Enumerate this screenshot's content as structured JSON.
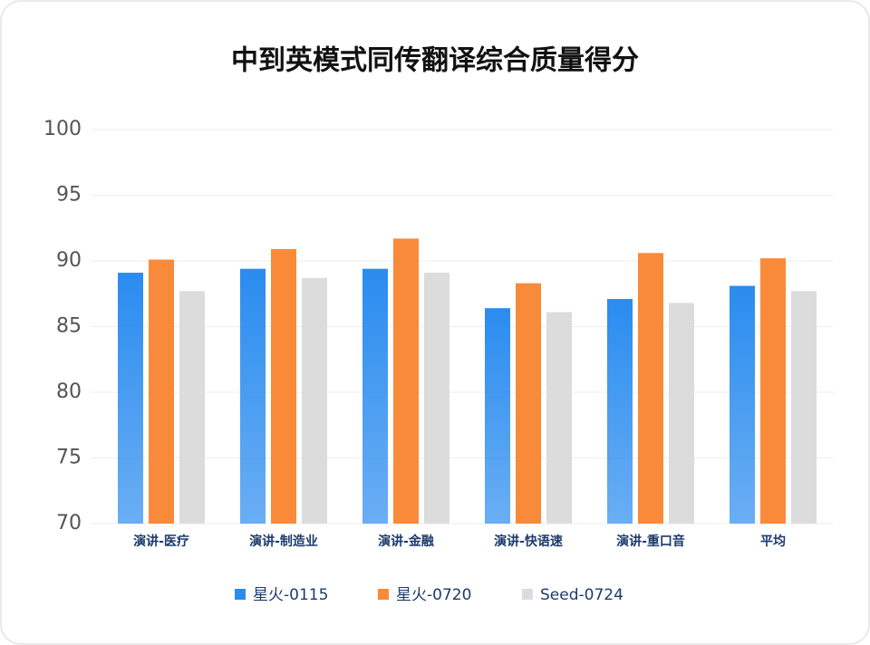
{
  "chart_data": {
    "type": "bar",
    "title": "中到英模式同传翻译综合质量得分",
    "categories": [
      "演讲-医疗",
      "演讲-制造业",
      "演讲-金融",
      "演讲-快语速",
      "演讲-重口音",
      "平均"
    ],
    "series": [
      {
        "name": "星火-0115",
        "color": "#2a8cef",
        "values": [
          89.1,
          89.4,
          89.4,
          86.4,
          87.1,
          88.1
        ]
      },
      {
        "name": "星火-0720",
        "color": "#f98a3a",
        "values": [
          90.1,
          90.9,
          91.7,
          88.3,
          90.6,
          90.2
        ]
      },
      {
        "name": "Seed-0724",
        "color": "#dcdcdc",
        "values": [
          87.7,
          88.7,
          89.1,
          86.1,
          86.8,
          87.7
        ]
      }
    ],
    "ylim": [
      70,
      100
    ],
    "yticks": [
      70,
      75,
      80,
      85,
      90,
      95,
      100
    ],
    "grid": true,
    "legend": "bottom"
  }
}
